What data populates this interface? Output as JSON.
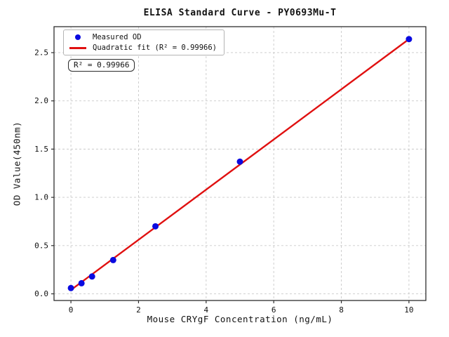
{
  "page": {
    "background": "#ffffff"
  },
  "chart_data": {
    "type": "scatter",
    "title": "ELISA Standard Curve - PY0693Mu-T",
    "xlabel": "Mouse CRYgF Concentration (ng/mL)",
    "ylabel": "OD Value(450nm)",
    "xlim": [
      -0.5,
      10.5
    ],
    "ylim": [
      -0.069,
      2.769
    ],
    "grid": true,
    "legend_position": "upper-left",
    "x_ticks": [
      0,
      2,
      4,
      6,
      8,
      10
    ],
    "x_tick_labels": [
      "0",
      "2",
      "4",
      "6",
      "8",
      "10"
    ],
    "y_ticks": [
      0.0,
      0.5,
      1.0,
      1.5,
      2.0,
      2.5
    ],
    "y_tick_labels": [
      "0.0",
      "0.5",
      "1.0",
      "1.5",
      "2.0",
      "2.5"
    ],
    "series": [
      {
        "name": "Measured OD",
        "type": "scatter",
        "color": "#0a0ae0",
        "x": [
          0,
          0.313,
          0.625,
          1.25,
          2.5,
          5,
          10
        ],
        "y": [
          0.06,
          0.11,
          0.18,
          0.35,
          0.7,
          1.37,
          2.64
        ]
      },
      {
        "name": "Quadratic fit (R² = 0.99966)",
        "type": "line",
        "color": "#e01010",
        "x": [
          0,
          2.5,
          5,
          7.5,
          10
        ],
        "y": [
          0.04,
          0.69,
          1.34,
          1.99,
          2.64
        ]
      }
    ],
    "annotation": "R² = 0.99966",
    "r_squared": 0.99966,
    "colors": {
      "grid": "#c9c9c9",
      "spine": "#2e2e2e",
      "tick": "#2e2e2e"
    }
  }
}
